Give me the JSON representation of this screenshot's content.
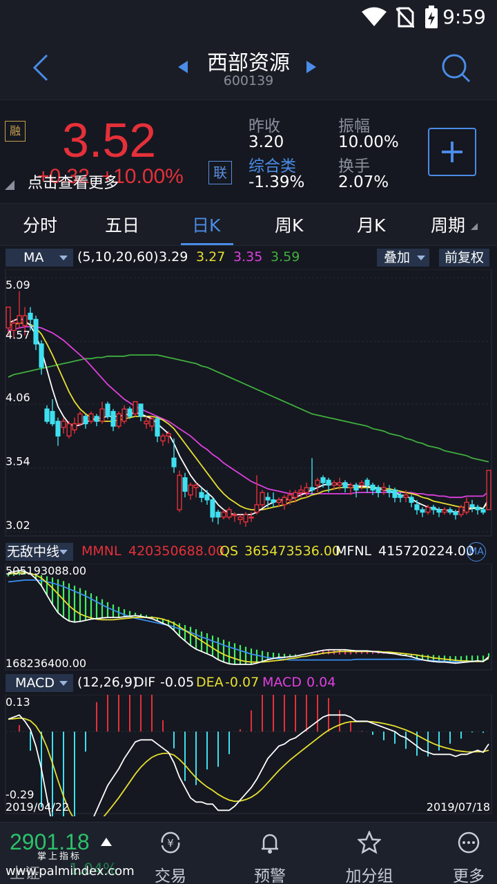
{
  "status": {
    "time": "9:59"
  },
  "header": {
    "title": "西部资源",
    "code": "600139"
  },
  "quote": {
    "price": "3.52",
    "change": "+0.32",
    "change_pct": "+10.00%",
    "rong_badge": "融",
    "hint": "点击查看更多",
    "lian_badge": "联",
    "prev_close_label": "昨收",
    "prev_close": "3.20",
    "amplitude_label": "振幅",
    "amplitude": "10.00%",
    "sector_label": "综合类",
    "sector_change": "-1.39%",
    "turnover_label": "换手",
    "turnover": "2.07%"
  },
  "tabs": [
    "分时",
    "五日",
    "日K",
    "周K",
    "月K",
    "周期"
  ],
  "active_tab": 2,
  "ma_bar": {
    "indicator": "MA",
    "params": "(5,10,20,60)",
    "v1": "3.29",
    "v2": "3.27",
    "v3": "3.35",
    "v4": "3.59",
    "overlay_label": "叠加",
    "adjust_label": "前复权"
  },
  "mid_bar": {
    "indicator": "无敌中线",
    "mmnl_label": "MMNL",
    "mmnl": "420350688.00",
    "qs_label": "QS",
    "qs": "365473536.00",
    "mfnl_label": "MFNL",
    "mfnl": "415720224.00",
    "ma_badge": "MA"
  },
  "macd_bar": {
    "indicator": "MACD",
    "params": "(12,26,9)",
    "dif_label": "DIF",
    "dif": "-0.05",
    "dea_label": "DEA",
    "dea": "-0.07",
    "macd_label": "MACD",
    "macd": "0.04"
  },
  "dates": {
    "start": "2019/04/22",
    "end": "2019/07/18"
  },
  "bottom": {
    "index_value": "2901.18",
    "index_name": "上证",
    "index_change": "1.04%",
    "watermark_line1": "掌上指标",
    "watermark_line2": "www.palmindex.com",
    "nav": [
      "交易",
      "预警",
      "加分组",
      "更多"
    ]
  },
  "colors": {
    "up": "#e5303a",
    "down": "#3ee0f0",
    "accent": "#4a8ce8",
    "ma5": "#ffffff",
    "ma10": "#e8e030",
    "ma20": "#e040e0",
    "ma60": "#40b040"
  },
  "chart_data": [
    {
      "type": "candlestick",
      "title": "日K",
      "y_ticks": [
        5.09,
        4.57,
        4.06,
        3.54,
        3.02
      ],
      "ylim": [
        3.02,
        5.09
      ],
      "candles": [
        [
          4.68,
          4.85,
          4.75,
          4.62
        ],
        [
          4.66,
          4.72,
          4.75,
          4.6
        ],
        [
          4.72,
          4.78,
          4.98,
          4.68
        ],
        [
          4.7,
          4.78,
          4.85,
          4.62
        ],
        [
          4.8,
          4.75,
          4.85,
          4.66
        ],
        [
          4.75,
          4.55,
          4.78,
          4.5
        ],
        [
          4.55,
          4.36,
          4.58,
          4.3
        ],
        [
          4.02,
          3.92,
          4.05,
          3.9
        ],
        [
          4.0,
          3.9,
          4.1,
          3.88
        ],
        [
          3.92,
          3.8,
          3.95,
          3.72
        ],
        [
          3.87,
          3.92,
          3.95,
          3.82
        ],
        [
          3.8,
          3.9,
          3.92,
          3.78
        ],
        [
          3.85,
          3.9,
          3.95,
          3.82
        ],
        [
          3.9,
          3.98,
          4.0,
          3.88
        ],
        [
          3.96,
          3.9,
          3.98,
          3.86
        ],
        [
          3.92,
          3.98,
          4.0,
          3.9
        ],
        [
          3.96,
          3.92,
          3.98,
          3.88
        ],
        [
          3.92,
          4.02,
          4.08,
          3.9
        ],
        [
          4.06,
          3.96,
          4.08,
          3.94
        ],
        [
          4.0,
          3.88,
          4.02,
          3.84
        ],
        [
          3.88,
          3.98,
          4.0,
          3.86
        ],
        [
          3.92,
          4.02,
          4.05,
          3.9
        ],
        [
          4.02,
          3.96,
          4.04,
          3.94
        ],
        [
          3.98,
          4.08,
          4.08,
          3.96
        ],
        [
          4.06,
          3.96,
          4.06,
          3.92
        ],
        [
          3.9,
          3.92,
          3.96,
          3.86
        ],
        [
          3.88,
          3.94,
          3.96,
          3.84
        ],
        [
          3.94,
          3.8,
          3.96,
          3.75
        ],
        [
          3.76,
          3.8,
          3.82,
          3.72
        ],
        [
          3.8,
          3.82,
          3.84,
          3.74
        ],
        [
          3.62,
          3.55,
          3.78,
          3.5
        ],
        [
          3.2,
          3.48,
          3.52,
          3.18
        ],
        [
          3.46,
          3.35,
          3.5,
          3.3
        ],
        [
          3.32,
          3.4,
          3.42,
          3.28
        ],
        [
          3.38,
          3.4,
          3.42,
          3.3
        ],
        [
          3.34,
          3.3,
          3.38,
          3.26
        ],
        [
          3.32,
          3.28,
          3.36,
          3.24
        ],
        [
          3.28,
          3.14,
          3.3,
          3.1
        ],
        [
          3.18,
          3.14,
          3.2,
          3.08
        ],
        [
          3.14,
          3.18,
          3.2,
          3.12
        ],
        [
          3.14,
          3.2,
          3.22,
          3.12
        ],
        [
          3.16,
          3.16,
          3.18,
          3.1
        ],
        [
          3.12,
          3.14,
          3.16,
          3.08
        ],
        [
          3.1,
          3.16,
          3.18,
          3.06
        ],
        [
          3.14,
          3.14,
          3.18,
          3.1
        ],
        [
          3.18,
          3.24,
          3.48,
          3.16
        ],
        [
          3.24,
          3.34,
          3.36,
          3.22
        ],
        [
          3.3,
          3.28,
          3.34,
          3.22
        ],
        [
          3.28,
          3.26,
          3.34,
          3.22
        ],
        [
          3.26,
          3.28,
          3.3,
          3.22
        ],
        [
          3.24,
          3.3,
          3.32,
          3.2
        ],
        [
          3.28,
          3.32,
          3.36,
          3.24
        ],
        [
          3.3,
          3.34,
          3.36,
          3.26
        ],
        [
          3.34,
          3.36,
          3.4,
          3.3
        ],
        [
          3.34,
          3.38,
          3.42,
          3.3
        ],
        [
          3.38,
          3.36,
          3.62,
          3.32
        ],
        [
          3.4,
          3.44,
          3.46,
          3.34
        ],
        [
          3.46,
          3.42,
          3.48,
          3.38
        ],
        [
          3.44,
          3.4,
          3.46,
          3.34
        ],
        [
          3.4,
          3.42,
          3.44,
          3.36
        ],
        [
          3.4,
          3.42,
          3.46,
          3.36
        ],
        [
          3.42,
          3.38,
          3.44,
          3.34
        ],
        [
          3.38,
          3.4,
          3.42,
          3.32
        ],
        [
          3.4,
          3.36,
          3.42,
          3.3
        ],
        [
          3.4,
          3.42,
          3.44,
          3.36
        ],
        [
          3.44,
          3.4,
          3.46,
          3.34
        ],
        [
          3.4,
          3.36,
          3.42,
          3.32
        ],
        [
          3.38,
          3.34,
          3.4,
          3.3
        ],
        [
          3.36,
          3.38,
          3.42,
          3.32
        ],
        [
          3.36,
          3.34,
          3.4,
          3.3
        ],
        [
          3.36,
          3.3,
          3.38,
          3.26
        ],
        [
          3.32,
          3.3,
          3.34,
          3.26
        ],
        [
          3.3,
          3.32,
          3.36,
          3.26
        ],
        [
          3.3,
          3.26,
          3.32,
          3.22
        ],
        [
          3.24,
          3.2,
          3.28,
          3.16
        ],
        [
          3.2,
          3.18,
          3.22,
          3.14
        ],
        [
          3.18,
          3.22,
          3.24,
          3.16
        ],
        [
          3.22,
          3.2,
          3.24,
          3.16
        ],
        [
          3.2,
          3.18,
          3.22,
          3.14
        ],
        [
          3.18,
          3.2,
          3.22,
          3.16
        ],
        [
          3.2,
          3.18,
          3.22,
          3.16
        ],
        [
          3.18,
          3.16,
          3.2,
          3.12
        ],
        [
          3.16,
          3.22,
          3.24,
          3.14
        ],
        [
          3.18,
          3.26,
          3.3,
          3.16
        ],
        [
          3.24,
          3.22,
          3.28,
          3.18
        ],
        [
          3.22,
          3.2,
          3.24,
          3.16
        ],
        [
          3.2,
          3.18,
          3.22,
          3.16
        ],
        [
          3.2,
          3.52,
          3.52,
          3.2
        ]
      ],
      "ma5": [
        4.72,
        4.74,
        4.76,
        4.74,
        4.7,
        4.62,
        4.5,
        4.34,
        4.18,
        4.04,
        3.96,
        3.9,
        3.88,
        3.89,
        3.91,
        3.93,
        3.94,
        3.95,
        3.96,
        3.96,
        3.96,
        3.97,
        3.98,
        3.99,
        3.98,
        3.96,
        3.94,
        3.9,
        3.86,
        3.82,
        3.74,
        3.64,
        3.56,
        3.48,
        3.42,
        3.38,
        3.34,
        3.3,
        3.24,
        3.2,
        3.17,
        3.16,
        3.16,
        3.16,
        3.16,
        3.18,
        3.21,
        3.24,
        3.26,
        3.28,
        3.28,
        3.29,
        3.3,
        3.32,
        3.34,
        3.36,
        3.38,
        3.4,
        3.41,
        3.41,
        3.41,
        3.41,
        3.4,
        3.39,
        3.39,
        3.39,
        3.38,
        3.37,
        3.36,
        3.35,
        3.34,
        3.32,
        3.31,
        3.29,
        3.26,
        3.24,
        3.22,
        3.21,
        3.2,
        3.2,
        3.19,
        3.18,
        3.19,
        3.2,
        3.21,
        3.22,
        3.21,
        3.29
      ],
      "ma10": [
        4.7,
        4.71,
        4.72,
        4.72,
        4.71,
        4.68,
        4.63,
        4.55,
        4.46,
        4.36,
        4.26,
        4.16,
        4.08,
        4.02,
        3.98,
        3.95,
        3.93,
        3.92,
        3.92,
        3.92,
        3.93,
        3.94,
        3.95,
        3.96,
        3.96,
        3.96,
        3.96,
        3.95,
        3.93,
        3.9,
        3.86,
        3.8,
        3.74,
        3.68,
        3.62,
        3.56,
        3.5,
        3.44,
        3.38,
        3.33,
        3.29,
        3.26,
        3.23,
        3.21,
        3.2,
        3.2,
        3.2,
        3.21,
        3.22,
        3.23,
        3.24,
        3.26,
        3.27,
        3.29,
        3.3,
        3.32,
        3.33,
        3.35,
        3.36,
        3.37,
        3.38,
        3.38,
        3.38,
        3.38,
        3.38,
        3.38,
        3.38,
        3.38,
        3.37,
        3.37,
        3.36,
        3.35,
        3.34,
        3.33,
        3.32,
        3.3,
        3.29,
        3.27,
        3.26,
        3.25,
        3.24,
        3.23,
        3.22,
        3.22,
        3.21,
        3.21,
        3.21,
        3.27
      ],
      "ma20": [
        4.66,
        4.67,
        4.68,
        4.69,
        4.69,
        4.69,
        4.68,
        4.66,
        4.64,
        4.61,
        4.58,
        4.54,
        4.5,
        4.46,
        4.42,
        4.37,
        4.32,
        4.27,
        4.22,
        4.18,
        4.14,
        4.1,
        4.07,
        4.04,
        4.02,
        4.0,
        3.98,
        3.96,
        3.94,
        3.92,
        3.89,
        3.86,
        3.83,
        3.8,
        3.76,
        3.72,
        3.69,
        3.65,
        3.62,
        3.58,
        3.55,
        3.52,
        3.49,
        3.46,
        3.43,
        3.41,
        3.39,
        3.37,
        3.36,
        3.35,
        3.34,
        3.33,
        3.33,
        3.33,
        3.33,
        3.33,
        3.33,
        3.33,
        3.33,
        3.33,
        3.33,
        3.33,
        3.33,
        3.34,
        3.34,
        3.34,
        3.34,
        3.34,
        3.34,
        3.34,
        3.34,
        3.34,
        3.34,
        3.34,
        3.33,
        3.33,
        3.32,
        3.32,
        3.31,
        3.31,
        3.3,
        3.3,
        3.3,
        3.31,
        3.31,
        3.31,
        3.31,
        3.35
      ],
      "ma60": [
        4.28,
        4.3,
        4.31,
        4.32,
        4.33,
        4.34,
        4.35,
        4.36,
        4.37,
        4.38,
        4.39,
        4.4,
        4.41,
        4.42,
        4.43,
        4.43,
        4.44,
        4.44,
        4.45,
        4.45,
        4.45,
        4.45,
        4.46,
        4.46,
        4.46,
        4.46,
        4.46,
        4.46,
        4.45,
        4.44,
        4.43,
        4.42,
        4.41,
        4.4,
        4.39,
        4.37,
        4.36,
        4.34,
        4.32,
        4.3,
        4.28,
        4.26,
        4.24,
        4.22,
        4.2,
        4.18,
        4.16,
        4.14,
        4.12,
        4.1,
        4.08,
        4.06,
        4.04,
        4.02,
        4.0,
        3.98,
        3.97,
        3.96,
        3.95,
        3.94,
        3.93,
        3.92,
        3.91,
        3.9,
        3.89,
        3.88,
        3.86,
        3.85,
        3.84,
        3.82,
        3.81,
        3.8,
        3.78,
        3.77,
        3.75,
        3.74,
        3.72,
        3.71,
        3.7,
        3.68,
        3.67,
        3.66,
        3.65,
        3.64,
        3.62,
        3.61,
        3.6,
        3.59
      ]
    },
    {
      "type": "bar",
      "title": "无敌中线",
      "y_ticks": [
        505193088.0,
        168236400.0
      ]
    },
    {
      "type": "bar",
      "title": "MACD",
      "y_ticks": [
        0.13,
        -0.29
      ]
    }
  ]
}
